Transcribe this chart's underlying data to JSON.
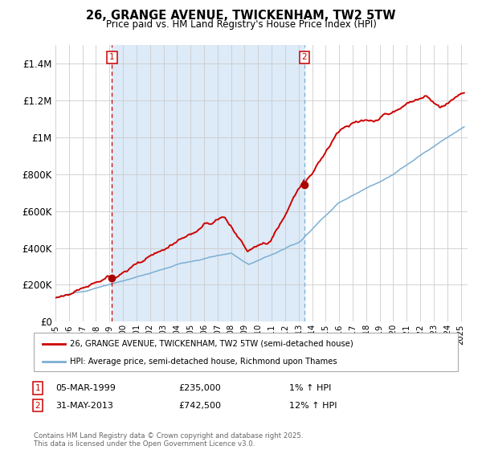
{
  "title": "26, GRANGE AVENUE, TWICKENHAM, TW2 5TW",
  "subtitle": "Price paid vs. HM Land Registry's House Price Index (HPI)",
  "xlim_start": 1995.0,
  "xlim_end": 2025.5,
  "ylim_min": 0,
  "ylim_max": 1500000,
  "yticks": [
    0,
    200000,
    400000,
    600000,
    800000,
    1000000,
    1200000,
    1400000
  ],
  "ytick_labels": [
    "£0",
    "£200K",
    "£400K",
    "£600K",
    "£800K",
    "£1M",
    "£1.2M",
    "£1.4M"
  ],
  "sale1_date": 1999.18,
  "sale1_price": 235000,
  "sale1_label": "1",
  "sale1_text": "05-MAR-1999",
  "sale1_amount": "£235,000",
  "sale1_hpi": "1% ↑ HPI",
  "sale2_date": 2013.42,
  "sale2_price": 742500,
  "sale2_label": "2",
  "sale2_text": "31-MAY-2013",
  "sale2_amount": "£742,500",
  "sale2_hpi": "12% ↑ HPI",
  "hpi_color": "#7bafd4",
  "price_color": "#cc0000",
  "marker_color": "#aa0000",
  "shade_color": "#ddeaf7",
  "vline1_color": "#cc0000",
  "vline2_color": "#7bafd4",
  "grid_color": "#cccccc",
  "background_color": "#ffffff",
  "legend_line1": "26, GRANGE AVENUE, TWICKENHAM, TW2 5TW (semi-detached house)",
  "legend_line2": "HPI: Average price, semi-detached house, Richmond upon Thames",
  "footnote": "Contains HM Land Registry data © Crown copyright and database right 2025.\nThis data is licensed under the Open Government Licence v3.0.",
  "xtick_years": [
    1995,
    1996,
    1997,
    1998,
    1999,
    2000,
    2001,
    2002,
    2003,
    2004,
    2005,
    2006,
    2007,
    2008,
    2009,
    2010,
    2011,
    2012,
    2013,
    2014,
    2015,
    2016,
    2017,
    2018,
    2019,
    2020,
    2021,
    2022,
    2023,
    2024,
    2025
  ]
}
